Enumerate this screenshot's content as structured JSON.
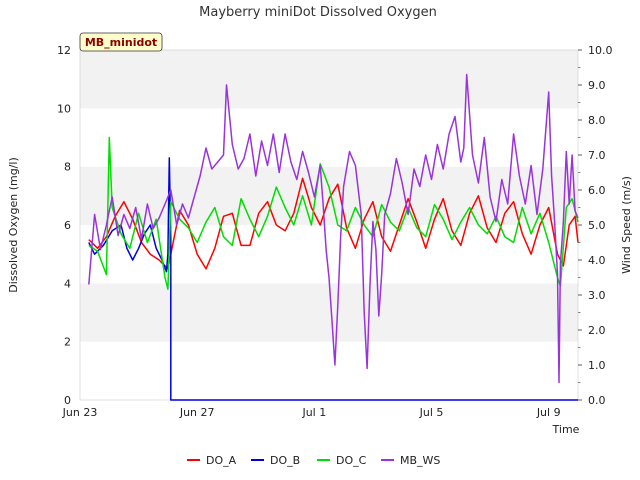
{
  "chart_data": {
    "type": "line",
    "title": "Mayberry miniDot Dissolved Oxygen",
    "tag_label": "MB_minidot",
    "xlabel": "Time",
    "ylabel_left": "Dissolved Oxygen (mg/l)",
    "ylabel_right": "Wind Speed (m/s)",
    "x_day_range": [
      0,
      17
    ],
    "x_ticks": [
      {
        "day": 0,
        "label": "Jun 23"
      },
      {
        "day": 4,
        "label": "Jun 27"
      },
      {
        "day": 8,
        "label": "Jul 1"
      },
      {
        "day": 12,
        "label": "Jul 5"
      },
      {
        "day": 16,
        "label": "Jul 9"
      }
    ],
    "ylim_left": [
      0,
      12
    ],
    "yticks_left": [
      "0",
      "2",
      "4",
      "6",
      "8",
      "10",
      "12"
    ],
    "ylim_right": [
      0,
      10
    ],
    "yticks_right": [
      "0.0",
      "1.0",
      "2.0",
      "3.0",
      "4.0",
      "5.0",
      "6.0",
      "7.0",
      "8.0",
      "9.0",
      "10.0"
    ],
    "grid": "horizontal bands",
    "legend_position": "bottom",
    "series": [
      {
        "name": "DO_A",
        "color": "#ff0000",
        "axis": "left",
        "points": [
          [
            0.3,
            5.5
          ],
          [
            0.6,
            5.2
          ],
          [
            0.9,
            5.6
          ],
          [
            1.2,
            6.3
          ],
          [
            1.5,
            6.8
          ],
          [
            1.8,
            6.2
          ],
          [
            2.1,
            5.4
          ],
          [
            2.4,
            5.0
          ],
          [
            2.7,
            4.8
          ],
          [
            3.0,
            4.5
          ],
          [
            3.2,
            5.5
          ],
          [
            3.4,
            6.5
          ],
          [
            3.7,
            6.0
          ],
          [
            4.0,
            5.0
          ],
          [
            4.3,
            4.5
          ],
          [
            4.6,
            5.2
          ],
          [
            4.9,
            6.3
          ],
          [
            5.2,
            6.4
          ],
          [
            5.5,
            5.3
          ],
          [
            5.8,
            5.3
          ],
          [
            6.1,
            6.4
          ],
          [
            6.4,
            6.8
          ],
          [
            6.7,
            6.0
          ],
          [
            7.0,
            5.8
          ],
          [
            7.3,
            6.4
          ],
          [
            7.6,
            7.6
          ],
          [
            7.9,
            6.6
          ],
          [
            8.2,
            6.0
          ],
          [
            8.5,
            6.9
          ],
          [
            8.8,
            7.4
          ],
          [
            9.1,
            5.9
          ],
          [
            9.4,
            5.2
          ],
          [
            9.7,
            6.2
          ],
          [
            10.0,
            6.8
          ],
          [
            10.3,
            5.6
          ],
          [
            10.6,
            5.1
          ],
          [
            10.9,
            6.0
          ],
          [
            11.2,
            6.9
          ],
          [
            11.5,
            6.1
          ],
          [
            11.8,
            5.2
          ],
          [
            12.1,
            6.2
          ],
          [
            12.4,
            6.9
          ],
          [
            12.7,
            5.8
          ],
          [
            13.0,
            5.3
          ],
          [
            13.3,
            6.4
          ],
          [
            13.6,
            7.0
          ],
          [
            13.9,
            5.9
          ],
          [
            14.2,
            5.4
          ],
          [
            14.5,
            6.4
          ],
          [
            14.8,
            6.8
          ],
          [
            15.1,
            5.7
          ],
          [
            15.4,
            5.0
          ],
          [
            15.7,
            6.0
          ],
          [
            16.0,
            6.6
          ],
          [
            16.3,
            5.0
          ],
          [
            16.5,
            4.6
          ],
          [
            16.7,
            6.0
          ],
          [
            16.9,
            6.3
          ],
          [
            17.0,
            5.4
          ]
        ]
      },
      {
        "name": "DO_B",
        "color": "#0000dd",
        "axis": "left",
        "points": [
          [
            0.3,
            5.4
          ],
          [
            0.5,
            5.0
          ],
          [
            0.8,
            5.3
          ],
          [
            1.1,
            5.8
          ],
          [
            1.4,
            6.0
          ],
          [
            1.6,
            5.2
          ],
          [
            1.8,
            4.8
          ],
          [
            2.0,
            5.2
          ],
          [
            2.2,
            5.7
          ],
          [
            2.4,
            6.0
          ],
          [
            2.6,
            5.2
          ],
          [
            2.8,
            4.8
          ],
          [
            2.95,
            4.4
          ],
          [
            3.0,
            5.0
          ],
          [
            3.05,
            8.3
          ],
          [
            3.1,
            5.5
          ],
          [
            3.1,
            0.0
          ],
          [
            6.0,
            0.0
          ],
          [
            10.0,
            0.0
          ],
          [
            14.0,
            0.0
          ],
          [
            17.0,
            0.0
          ]
        ]
      },
      {
        "name": "DO_C",
        "color": "#00dd00",
        "axis": "left",
        "points": [
          [
            0.3,
            5.3
          ],
          [
            0.6,
            5.1
          ],
          [
            0.9,
            4.3
          ],
          [
            1.0,
            9.0
          ],
          [
            1.1,
            6.6
          ],
          [
            1.4,
            5.7
          ],
          [
            1.7,
            5.2
          ],
          [
            2.0,
            6.4
          ],
          [
            2.3,
            5.4
          ],
          [
            2.6,
            6.2
          ],
          [
            2.9,
            4.2
          ],
          [
            3.0,
            3.8
          ],
          [
            3.1,
            6.8
          ],
          [
            3.4,
            6.2
          ],
          [
            3.7,
            5.9
          ],
          [
            4.0,
            5.4
          ],
          [
            4.3,
            6.1
          ],
          [
            4.6,
            6.6
          ],
          [
            4.9,
            5.6
          ],
          [
            5.2,
            5.3
          ],
          [
            5.5,
            6.9
          ],
          [
            5.8,
            6.2
          ],
          [
            6.1,
            5.6
          ],
          [
            6.4,
            6.3
          ],
          [
            6.7,
            7.3
          ],
          [
            7.0,
            6.6
          ],
          [
            7.3,
            6.0
          ],
          [
            7.6,
            7.0
          ],
          [
            7.9,
            6.0
          ],
          [
            8.2,
            8.1
          ],
          [
            8.5,
            7.3
          ],
          [
            8.8,
            6.0
          ],
          [
            9.1,
            5.8
          ],
          [
            9.4,
            6.6
          ],
          [
            9.7,
            6.0
          ],
          [
            10.0,
            5.6
          ],
          [
            10.3,
            6.7
          ],
          [
            10.6,
            6.1
          ],
          [
            10.9,
            5.8
          ],
          [
            11.2,
            6.6
          ],
          [
            11.5,
            5.9
          ],
          [
            11.8,
            5.6
          ],
          [
            12.1,
            6.7
          ],
          [
            12.4,
            6.2
          ],
          [
            12.7,
            5.5
          ],
          [
            13.0,
            6.1
          ],
          [
            13.3,
            6.6
          ],
          [
            13.6,
            6.0
          ],
          [
            13.9,
            5.7
          ],
          [
            14.2,
            6.3
          ],
          [
            14.5,
            5.6
          ],
          [
            14.8,
            5.4
          ],
          [
            15.1,
            6.6
          ],
          [
            15.4,
            5.7
          ],
          [
            15.7,
            6.4
          ],
          [
            16.0,
            5.4
          ],
          [
            16.3,
            4.2
          ],
          [
            16.4,
            3.9
          ],
          [
            16.6,
            6.6
          ],
          [
            16.8,
            6.9
          ],
          [
            17.0,
            6.1
          ]
        ]
      },
      {
        "name": "MB_WS",
        "color": "#9933dd",
        "axis": "right",
        "points": [
          [
            0.3,
            3.3
          ],
          [
            0.5,
            5.3
          ],
          [
            0.7,
            4.3
          ],
          [
            0.9,
            5.0
          ],
          [
            1.1,
            5.8
          ],
          [
            1.3,
            4.7
          ],
          [
            1.5,
            5.3
          ],
          [
            1.7,
            4.9
          ],
          [
            1.9,
            5.5
          ],
          [
            2.1,
            4.6
          ],
          [
            2.3,
            5.6
          ],
          [
            2.5,
            4.9
          ],
          [
            2.7,
            5.2
          ],
          [
            2.9,
            5.6
          ],
          [
            3.1,
            6.0
          ],
          [
            3.3,
            5.0
          ],
          [
            3.5,
            5.6
          ],
          [
            3.7,
            5.2
          ],
          [
            3.9,
            5.8
          ],
          [
            4.1,
            6.4
          ],
          [
            4.3,
            7.2
          ],
          [
            4.5,
            6.6
          ],
          [
            4.7,
            6.8
          ],
          [
            4.9,
            7.0
          ],
          [
            5.0,
            9.0
          ],
          [
            5.2,
            7.3
          ],
          [
            5.4,
            6.6
          ],
          [
            5.6,
            6.9
          ],
          [
            5.8,
            7.6
          ],
          [
            6.0,
            6.4
          ],
          [
            6.2,
            7.4
          ],
          [
            6.4,
            6.7
          ],
          [
            6.6,
            7.6
          ],
          [
            6.8,
            6.5
          ],
          [
            7.0,
            7.6
          ],
          [
            7.2,
            6.8
          ],
          [
            7.4,
            6.3
          ],
          [
            7.6,
            7.1
          ],
          [
            7.8,
            6.5
          ],
          [
            8.0,
            5.8
          ],
          [
            8.2,
            6.7
          ],
          [
            8.3,
            5.6
          ],
          [
            8.4,
            4.3
          ],
          [
            8.5,
            3.5
          ],
          [
            8.6,
            2.3
          ],
          [
            8.7,
            1.0
          ],
          [
            8.8,
            2.7
          ],
          [
            8.9,
            4.7
          ],
          [
            9.0,
            6.1
          ],
          [
            9.2,
            7.1
          ],
          [
            9.4,
            6.7
          ],
          [
            9.6,
            5.3
          ],
          [
            9.7,
            2.5
          ],
          [
            9.8,
            0.9
          ],
          [
            9.9,
            3.3
          ],
          [
            10.0,
            5.1
          ],
          [
            10.1,
            4.3
          ],
          [
            10.2,
            2.4
          ],
          [
            10.3,
            3.6
          ],
          [
            10.4,
            5.3
          ],
          [
            10.6,
            5.9
          ],
          [
            10.8,
            6.9
          ],
          [
            11.0,
            6.2
          ],
          [
            11.2,
            5.3
          ],
          [
            11.4,
            6.6
          ],
          [
            11.6,
            6.1
          ],
          [
            11.8,
            7.0
          ],
          [
            12.0,
            6.3
          ],
          [
            12.2,
            7.3
          ],
          [
            12.4,
            6.6
          ],
          [
            12.6,
            7.6
          ],
          [
            12.8,
            8.1
          ],
          [
            13.0,
            6.8
          ],
          [
            13.1,
            7.2
          ],
          [
            13.2,
            9.3
          ],
          [
            13.4,
            7.0
          ],
          [
            13.6,
            6.2
          ],
          [
            13.8,
            7.5
          ],
          [
            14.0,
            5.8
          ],
          [
            14.2,
            5.1
          ],
          [
            14.4,
            6.3
          ],
          [
            14.6,
            5.6
          ],
          [
            14.8,
            7.6
          ],
          [
            15.0,
            6.4
          ],
          [
            15.2,
            5.6
          ],
          [
            15.4,
            6.7
          ],
          [
            15.6,
            5.3
          ],
          [
            15.8,
            6.6
          ],
          [
            16.0,
            8.8
          ],
          [
            16.1,
            6.4
          ],
          [
            16.2,
            5.1
          ],
          [
            16.3,
            3.6
          ],
          [
            16.35,
            0.5
          ],
          [
            16.4,
            3.9
          ],
          [
            16.5,
            5.1
          ],
          [
            16.6,
            7.1
          ],
          [
            16.7,
            5.6
          ],
          [
            16.8,
            7.0
          ],
          [
            16.9,
            5.4
          ],
          [
            17.0,
            5.2
          ]
        ]
      }
    ]
  }
}
